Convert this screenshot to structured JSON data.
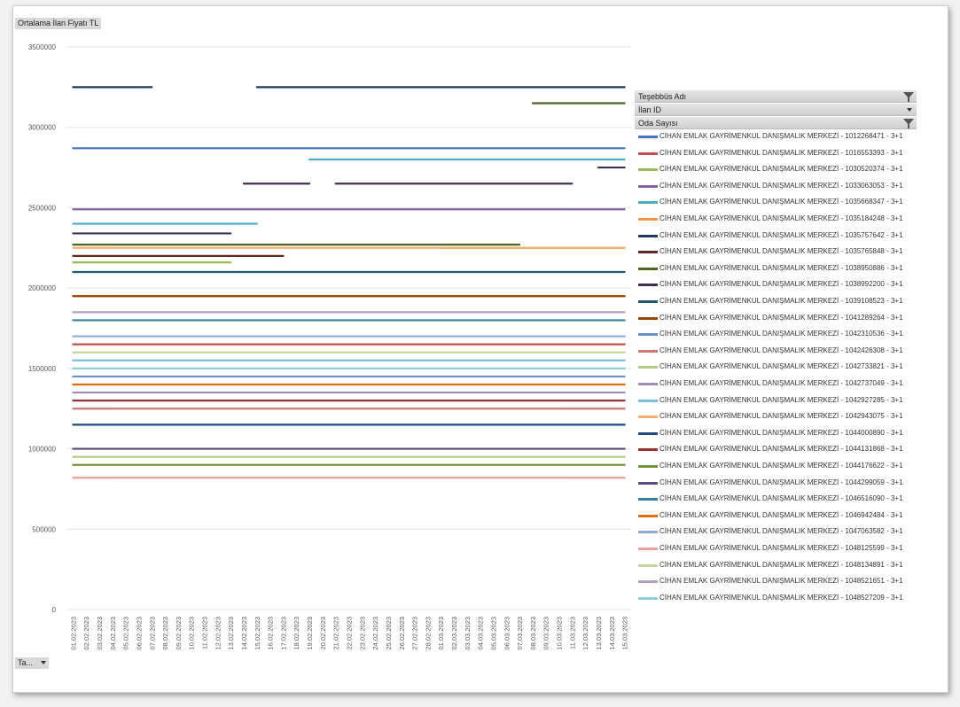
{
  "measure_button": "Ortalama İlan Fiyatı TL",
  "axis_button": "Ta...",
  "filters": [
    {
      "label": "Teşebbüs Adı",
      "icon": "filter-funnel-icon"
    },
    {
      "label": "İlan ID",
      "icon": "dropdown-arrow-icon"
    },
    {
      "label": "Oda Sayısı",
      "icon": "filter-funnel-icon"
    }
  ],
  "chart_data": {
    "type": "line",
    "title": "",
    "xlabel": "",
    "ylabel": "",
    "ylim": [
      0,
      3500000
    ],
    "yticks": [
      {
        "value": 0,
        "label": "0"
      },
      {
        "value": 500000,
        "label": "500000"
      },
      {
        "value": 1000000,
        "label": "1000000"
      },
      {
        "value": 1500000,
        "label": "1500000"
      },
      {
        "value": 2000000,
        "label": "2000000"
      },
      {
        "value": 2500000,
        "label": "2500000"
      },
      {
        "value": 3000000,
        "label": "3000000"
      },
      {
        "value": 3500000,
        "label": "3500000"
      }
    ],
    "grid": true,
    "legend": "right",
    "categories": [
      "01.02.2023",
      "02.02.2023",
      "03.02.2023",
      "04.02.2023",
      "05.02.2023",
      "06.02.2023",
      "07.02.2023",
      "08.02.2023",
      "09.02.2023",
      "10.02.2023",
      "11.02.2023",
      "12.02.2023",
      "13.02.2023",
      "14.02.2023",
      "15.02.2023",
      "16.02.2023",
      "17.02.2023",
      "18.02.2023",
      "19.02.2023",
      "20.02.2023",
      "21.02.2023",
      "22.02.2023",
      "23.02.2023",
      "24.02.2023",
      "25.02.2023",
      "26.02.2023",
      "27.02.2023",
      "28.02.2023",
      "01.03.2023",
      "02.03.2023",
      "03.03.2023",
      "04.03.2023",
      "05.03.2023",
      "06.03.2023",
      "07.03.2023",
      "08.03.2023",
      "09.03.2023",
      "10.03.2023",
      "11.03.2023",
      "12.03.2023",
      "13.03.2023",
      "14.03.2023",
      "15.03.2023"
    ],
    "series": [
      {
        "name": "CİHAN EMLAK GAYRİMENKUL DANIŞMALIK MERKEZİ - 1012268471 - 3+1",
        "color": "#4472c4",
        "segments": [
          [
            0,
            42,
            2870000
          ]
        ]
      },
      {
        "name": "CİHAN EMLAK GAYRİMENKUL DANIŞMALIK MERKEZİ - 1016553393 - 3+1",
        "color": "#c0504d",
        "segments": [
          [
            0,
            42,
            1650000
          ]
        ]
      },
      {
        "name": "CİHAN EMLAK GAYRİMENKUL DANIŞMALIK MERKEZİ - 1030520374 - 3+1",
        "color": "#9bbb59",
        "segments": [
          [
            0,
            12,
            2160000
          ],
          [
            28,
            42,
            2250000
          ]
        ]
      },
      {
        "name": "CİHAN EMLAK GAYRİMENKUL DANIŞMALIK MERKEZİ - 1033063053 - 3+1",
        "color": "#8064a2",
        "segments": [
          [
            0,
            42,
            2490000
          ]
        ]
      },
      {
        "name": "CİHAN EMLAK GAYRİMENKUL DANIŞMALIK MERKEZİ - 1035668347 - 3+1",
        "color": "#4bacc6",
        "segments": [
          [
            0,
            14,
            2400000
          ],
          [
            18,
            42,
            2800000
          ]
        ]
      },
      {
        "name": "CİHAN EMLAK GAYRİMENKUL DANIŞMALIK MERKEZİ - 1035184248 - 3+1",
        "color": "#f79646",
        "segments": [
          [
            0,
            42,
            1950000
          ]
        ]
      },
      {
        "name": "CİHAN EMLAK GAYRİMENKUL DANIŞMALIK MERKEZİ - 1035757642 - 3+1",
        "color": "#1f3864",
        "segments": [
          [
            0,
            6,
            3250000
          ],
          [
            14,
            42,
            3250000
          ]
        ]
      },
      {
        "name": "CİHAN EMLAK GAYRİMENKUL DANIŞMALIK MERKEZİ - 1035765848 - 3+1",
        "color": "#632523",
        "segments": [
          [
            0,
            16,
            2200000
          ]
        ]
      },
      {
        "name": "CİHAN EMLAK GAYRİMENKUL DANIŞMALIK MERKEZİ - 1038950886 - 3+1",
        "color": "#4f6228",
        "segments": [
          [
            0,
            34,
            2270000
          ],
          [
            35,
            36,
            3150000
          ],
          [
            36,
            42,
            3150000
          ]
        ]
      },
      {
        "name": "CİHAN EMLAK GAYRİMENKUL DANIŞMALIK MERKEZİ - 1038992200 - 3+1",
        "color": "#3f3151",
        "segments": [
          [
            0,
            12,
            2340000
          ],
          [
            13,
            18,
            2650000
          ],
          [
            20,
            38,
            2650000
          ],
          [
            40,
            42,
            2750000
          ]
        ]
      },
      {
        "name": "CİHAN EMLAK GAYRİMENKUL DANIŞMALIK MERKEZİ - 1039108523 - 3+1",
        "color": "#205867",
        "segments": [
          [
            0,
            42,
            2100000
          ]
        ]
      },
      {
        "name": "CİHAN EMLAK GAYRİMENKUL DANIŞMALIK MERKEZİ - 1041289264 - 3+1",
        "color": "#974806",
        "segments": [
          [
            0,
            42,
            1950000
          ]
        ]
      },
      {
        "name": "CİHAN EMLAK GAYRİMENKUL DANIŞMALIK MERKEZİ - 1042310536 - 3+1",
        "color": "#6b8fc8",
        "segments": [
          [
            0,
            42,
            1450000
          ]
        ]
      },
      {
        "name": "CİHAN EMLAK GAYRİMENKUL DANIŞMALIK MERKEZİ - 1042426308 - 3+1",
        "color": "#d07a78",
        "segments": [
          [
            0,
            42,
            1250000
          ]
        ]
      },
      {
        "name": "CİHAN EMLAK GAYRİMENKUL DANIŞMALIK MERKEZİ - 1042733821 - 3+1",
        "color": "#b3cc84",
        "segments": [
          [
            0,
            42,
            950000
          ]
        ]
      },
      {
        "name": "CİHAN EMLAK GAYRİMENKUL DANIŞMALIK MERKEZİ - 1042737049 - 3+1",
        "color": "#9f8ab8",
        "segments": [
          [
            0,
            42,
            1350000
          ]
        ]
      },
      {
        "name": "CİHAN EMLAK GAYRİMENKUL DANIŞMALIK MERKEZİ - 1042927285 - 3+1",
        "color": "#78c0d4",
        "segments": [
          [
            0,
            42,
            1550000
          ]
        ]
      },
      {
        "name": "CİHAN EMLAK GAYRİMENKUL DANIŞMALIK MERKEZİ - 1042943075 - 3+1",
        "color": "#f9b074",
        "segments": [
          [
            0,
            42,
            2250000
          ]
        ]
      },
      {
        "name": "CİHAN EMLAK GAYRİMENKUL DANIŞMALIK MERKEZİ - 1044000890 - 3+1",
        "color": "#1f497d",
        "segments": [
          [
            0,
            42,
            1150000
          ]
        ]
      },
      {
        "name": "CİHAN EMLAK GAYRİMENKUL DANIŞMALIK MERKEZİ - 1044131868 - 3+1",
        "color": "#943634",
        "segments": [
          [
            0,
            42,
            1300000
          ]
        ]
      },
      {
        "name": "CİHAN EMLAK GAYRİMENKUL DANIŞMALIK MERKEZİ - 1044176622 - 3+1",
        "color": "#76923c",
        "segments": [
          [
            0,
            42,
            900000
          ]
        ]
      },
      {
        "name": "CİHAN EMLAK GAYRİMENKUL DANIŞMALIK MERKEZİ - 1044299059 - 3+1",
        "color": "#5f497a",
        "segments": [
          [
            0,
            42,
            1000000
          ]
        ]
      },
      {
        "name": "CİHAN EMLAK GAYRİMENKUL DANIŞMALIK MERKEZİ - 1046516090 - 3+1",
        "color": "#31849b",
        "segments": [
          [
            0,
            42,
            1800000
          ]
        ]
      },
      {
        "name": "CİHAN EMLAK GAYRİMENKUL DANIŞMALIK MERKEZİ - 1046942484 - 3+1",
        "color": "#e36c09",
        "segments": [
          [
            0,
            42,
            1400000
          ]
        ]
      },
      {
        "name": "CİHAN EMLAK GAYRİMENKUL DANIŞMALIK MERKEZİ - 1047063582 - 3+1",
        "color": "#8eaadb",
        "segments": [
          [
            0,
            42,
            1700000
          ]
        ]
      },
      {
        "name": "CİHAN EMLAK GAYRİMENKUL DANIŞMALIK MERKEZİ - 1048125599 - 3+1",
        "color": "#e6a09e",
        "segments": [
          [
            0,
            42,
            820000
          ]
        ]
      },
      {
        "name": "CİHAN EMLAK GAYRİMENKUL DANIŞMALIK MERKEZİ - 1048134891 - 3+1",
        "color": "#c4d79b",
        "segments": [
          [
            0,
            42,
            1600000
          ]
        ]
      },
      {
        "name": "CİHAN EMLAK GAYRİMENKUL DANIŞMALIK MERKEZİ - 1048521651 - 3+1",
        "color": "#b2a1c7",
        "segments": [
          [
            0,
            42,
            1850000
          ]
        ]
      },
      {
        "name": "CİHAN EMLAK GAYRİMENKUL DANIŞMALIK MERKEZİ - 1048527209 - 3+1",
        "color": "#92cddc",
        "segments": [
          [
            0,
            42,
            1500000
          ]
        ]
      }
    ]
  }
}
